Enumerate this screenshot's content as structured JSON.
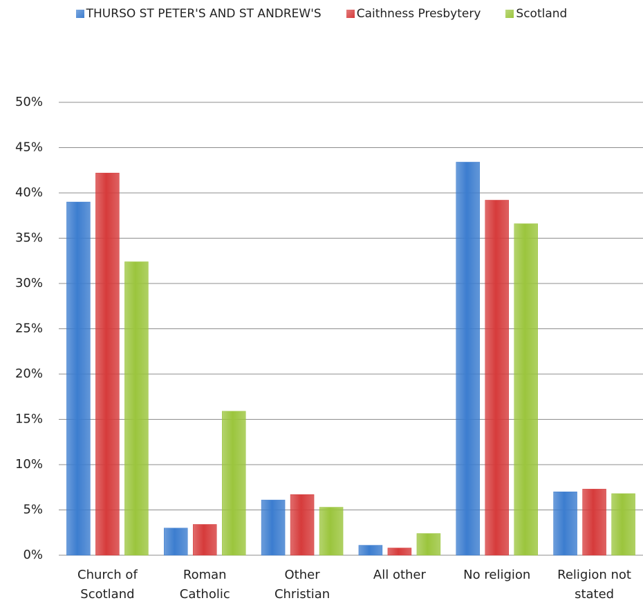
{
  "chart_data": {
    "type": "bar",
    "categories": [
      "Church of Scotland",
      "Roman Catholic",
      "Other Christian",
      "All other",
      "No religion",
      "Religion not stated"
    ],
    "series": [
      {
        "name": "THURSO ST PETER'S AND ST ANDREW'S",
        "color": "#3c7dcf",
        "values": [
          39.0,
          3.0,
          6.1,
          1.1,
          43.4,
          7.0
        ]
      },
      {
        "name": "Caithness Presbytery",
        "color": "#d63b3b",
        "values": [
          42.2,
          3.4,
          6.7,
          0.8,
          39.2,
          7.3
        ]
      },
      {
        "name": "Scotland",
        "color": "#9bc53d",
        "values": [
          32.4,
          15.9,
          5.3,
          2.4,
          36.6,
          6.8
        ]
      }
    ],
    "ylim": [
      0,
      50
    ],
    "yticks": [
      {
        "value": 0,
        "label": "0%"
      },
      {
        "value": 5,
        "label": "5%"
      },
      {
        "value": 10,
        "label": "10%"
      },
      {
        "value": 15,
        "label": "15%"
      },
      {
        "value": 20,
        "label": "20%"
      },
      {
        "value": 25,
        "label": "25%"
      },
      {
        "value": 30,
        "label": "30%"
      },
      {
        "value": 35,
        "label": "35%"
      },
      {
        "value": 40,
        "label": "40%"
      },
      {
        "value": 45,
        "label": "45%"
      },
      {
        "value": 50,
        "label": "50%"
      }
    ],
    "grid": true,
    "legend": "top"
  }
}
